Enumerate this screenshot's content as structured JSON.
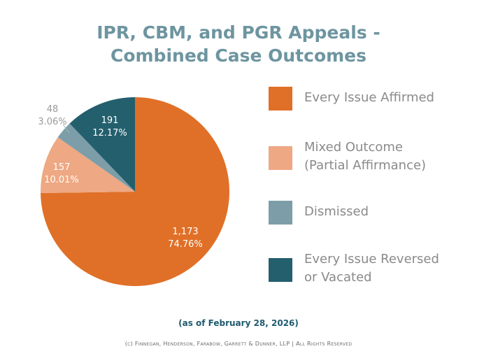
{
  "chart_data": {
    "type": "pie",
    "title_lines": [
      "IPR, CBM, and PGR Appeals -",
      "Combined Case Outcomes"
    ],
    "slices": [
      {
        "label": "Every Issue Affirmed",
        "legend_lines": [
          "Every Issue Affirmed"
        ],
        "value": 1173,
        "count_label": "1,173",
        "percent_label": "74.76%",
        "color": "#e07028"
      },
      {
        "label": "Mixed Outcome (Partial Affirmance)",
        "legend_lines": [
          "Mixed Outcome",
          "(Partial Affirmance)"
        ],
        "value": 157,
        "count_label": "157",
        "percent_label": "10.01%",
        "color": "#eea883"
      },
      {
        "label": "Dismissed",
        "legend_lines": [
          "Dismissed"
        ],
        "value": 48,
        "count_label": "48",
        "percent_label": "3.06%",
        "color": "#7d9ea8"
      },
      {
        "label": "Every Issue Reversed or Vacated",
        "legend_lines": [
          "Every Issue Reversed",
          "or Vacated"
        ],
        "value": 191,
        "count_label": "191",
        "percent_label": "12.17%",
        "color": "#245f6e"
      }
    ],
    "legend_position": "right"
  },
  "footer": {
    "as_of": "(as of February 28, 2026)",
    "copyright": "(c) Finnegan, Henderson, Farabow, Garrett & Dunner, LLP | All Rights Reserved"
  }
}
